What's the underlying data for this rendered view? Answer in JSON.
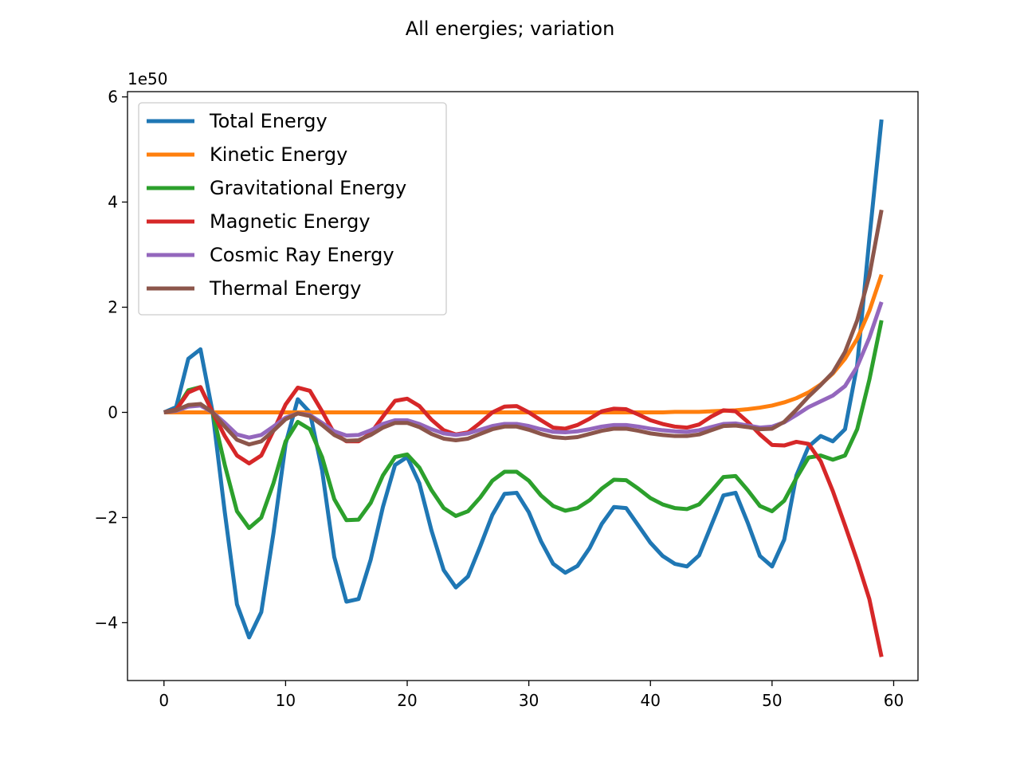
{
  "chart_data": {
    "type": "line",
    "title": "All energies; variation",
    "xlabel": "",
    "ylabel": "",
    "y_scale_label": "1e50",
    "xlim": [
      -3,
      62
    ],
    "ylim": [
      -5.1,
      6.1
    ],
    "x_ticks": [
      0,
      10,
      20,
      30,
      40,
      50,
      60
    ],
    "y_ticks": [
      -4,
      -2,
      0,
      2,
      4,
      6
    ],
    "x_tick_labels": [
      "0",
      "10",
      "20",
      "30",
      "40",
      "50",
      "60"
    ],
    "y_tick_labels": [
      "−4",
      "−2",
      "0",
      "2",
      "4",
      "6"
    ],
    "grid": false,
    "legend_position": "upper-left",
    "x": [
      0,
      1,
      2,
      3,
      4,
      5,
      6,
      7,
      8,
      9,
      10,
      11,
      12,
      13,
      14,
      15,
      16,
      17,
      18,
      19,
      20,
      21,
      22,
      23,
      24,
      25,
      26,
      27,
      28,
      29,
      30,
      31,
      32,
      33,
      34,
      35,
      36,
      37,
      38,
      39,
      40,
      41,
      42,
      43,
      44,
      45,
      46,
      47,
      48,
      49,
      50,
      51,
      52,
      53,
      54,
      55,
      56,
      57,
      58,
      59
    ],
    "series": [
      {
        "name": "Total Energy",
        "color": "#1f77b4",
        "values": [
          0,
          0.1,
          1.02,
          1.2,
          0.0,
          -1.9,
          -3.65,
          -4.28,
          -3.8,
          -2.3,
          -0.6,
          0.25,
          0.0,
          -1.1,
          -2.75,
          -3.6,
          -3.55,
          -2.8,
          -1.8,
          -1.0,
          -0.85,
          -1.35,
          -2.25,
          -3.0,
          -3.33,
          -3.12,
          -2.55,
          -1.95,
          -1.55,
          -1.53,
          -1.9,
          -2.45,
          -2.88,
          -3.05,
          -2.92,
          -2.58,
          -2.12,
          -1.8,
          -1.82,
          -2.15,
          -2.48,
          -2.73,
          -2.88,
          -2.93,
          -2.72,
          -2.15,
          -1.58,
          -1.53,
          -2.1,
          -2.73,
          -2.93,
          -2.42,
          -1.2,
          -0.65,
          -0.45,
          -0.55,
          -0.32,
          0.9,
          3.3,
          5.57
        ]
      },
      {
        "name": "Kinetic Energy",
        "color": "#ff7f0e",
        "values": [
          0,
          0,
          0,
          0,
          0,
          0,
          0,
          0,
          0,
          0,
          0,
          0,
          0,
          0,
          0,
          0,
          0,
          0,
          0,
          0,
          0,
          0,
          0,
          0,
          0,
          0,
          0,
          0,
          0,
          0,
          0,
          0,
          0,
          0,
          0,
          0,
          0,
          0,
          0,
          0,
          0,
          0,
          0.01,
          0.01,
          0.01,
          0.02,
          0.03,
          0.04,
          0.06,
          0.09,
          0.13,
          0.19,
          0.27,
          0.38,
          0.53,
          0.74,
          1.02,
          1.4,
          1.93,
          2.62
        ]
      },
      {
        "name": "Gravitational Energy",
        "color": "#2ca02c",
        "values": [
          0,
          0.05,
          0.42,
          0.48,
          0.0,
          -1.0,
          -1.88,
          -2.2,
          -2.0,
          -1.35,
          -0.55,
          -0.18,
          -0.32,
          -0.85,
          -1.65,
          -2.05,
          -2.04,
          -1.72,
          -1.2,
          -0.85,
          -0.8,
          -1.05,
          -1.48,
          -1.82,
          -1.97,
          -1.88,
          -1.62,
          -1.3,
          -1.13,
          -1.13,
          -1.3,
          -1.58,
          -1.78,
          -1.87,
          -1.82,
          -1.67,
          -1.45,
          -1.28,
          -1.29,
          -1.45,
          -1.63,
          -1.75,
          -1.82,
          -1.84,
          -1.75,
          -1.5,
          -1.23,
          -1.21,
          -1.48,
          -1.78,
          -1.88,
          -1.68,
          -1.25,
          -0.86,
          -0.82,
          -0.9,
          -0.82,
          -0.32,
          0.62,
          1.75
        ]
      },
      {
        "name": "Magnetic Energy",
        "color": "#d62728",
        "values": [
          0,
          0.05,
          0.38,
          0.48,
          0.0,
          -0.45,
          -0.82,
          -0.97,
          -0.82,
          -0.35,
          0.15,
          0.47,
          0.41,
          0.02,
          -0.4,
          -0.55,
          -0.55,
          -0.4,
          -0.08,
          0.22,
          0.26,
          0.12,
          -0.14,
          -0.34,
          -0.42,
          -0.38,
          -0.2,
          0.0,
          0.11,
          0.12,
          0.0,
          -0.15,
          -0.29,
          -0.31,
          -0.24,
          -0.12,
          0.02,
          0.07,
          0.06,
          -0.04,
          -0.15,
          -0.22,
          -0.27,
          -0.29,
          -0.23,
          -0.08,
          0.04,
          0.02,
          -0.18,
          -0.42,
          -0.62,
          -0.63,
          -0.56,
          -0.6,
          -0.93,
          -1.5,
          -2.15,
          -2.82,
          -3.55,
          -4.65
        ]
      },
      {
        "name": "Cosmic Ray Energy",
        "color": "#9467bd",
        "values": [
          0,
          0.03,
          0.11,
          0.13,
          0.0,
          -0.2,
          -0.42,
          -0.48,
          -0.43,
          -0.27,
          -0.1,
          -0.02,
          -0.05,
          -0.2,
          -0.36,
          -0.44,
          -0.43,
          -0.34,
          -0.22,
          -0.15,
          -0.15,
          -0.22,
          -0.32,
          -0.4,
          -0.43,
          -0.4,
          -0.33,
          -0.26,
          -0.22,
          -0.22,
          -0.26,
          -0.32,
          -0.37,
          -0.38,
          -0.36,
          -0.32,
          -0.27,
          -0.24,
          -0.24,
          -0.27,
          -0.31,
          -0.34,
          -0.36,
          -0.37,
          -0.34,
          -0.28,
          -0.22,
          -0.21,
          -0.25,
          -0.29,
          -0.27,
          -0.19,
          -0.05,
          0.1,
          0.21,
          0.32,
          0.5,
          0.87,
          1.42,
          2.1
        ]
      },
      {
        "name": "Thermal Energy",
        "color": "#8c564b",
        "values": [
          0,
          0.04,
          0.14,
          0.16,
          0.0,
          -0.27,
          -0.52,
          -0.61,
          -0.55,
          -0.35,
          -0.13,
          -0.02,
          -0.07,
          -0.24,
          -0.43,
          -0.54,
          -0.53,
          -0.43,
          -0.29,
          -0.2,
          -0.2,
          -0.28,
          -0.41,
          -0.5,
          -0.53,
          -0.5,
          -0.41,
          -0.32,
          -0.27,
          -0.27,
          -0.33,
          -0.41,
          -0.47,
          -0.49,
          -0.47,
          -0.41,
          -0.35,
          -0.31,
          -0.31,
          -0.35,
          -0.4,
          -0.43,
          -0.45,
          -0.45,
          -0.42,
          -0.34,
          -0.26,
          -0.25,
          -0.28,
          -0.32,
          -0.31,
          -0.18,
          0.05,
          0.3,
          0.52,
          0.76,
          1.15,
          1.75,
          2.6,
          3.85
        ]
      }
    ]
  }
}
